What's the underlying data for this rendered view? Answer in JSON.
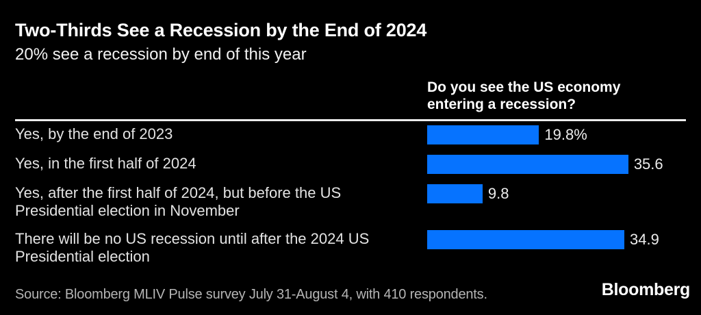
{
  "header": {
    "title": "Two-Thirds See a Recession by the End of 2024",
    "subtitle": "20% see a recession by end of this year"
  },
  "chart_data": {
    "type": "bar",
    "orientation": "horizontal",
    "question": "Do you see the US economy entering a recession?",
    "categories": [
      "Yes, by the end of 2023",
      "Yes, in the first half of 2024",
      "Yes, after the first half of 2024, but before the US Presidential election in November",
      "There will be no US recession until after the 2024 US Presidential election"
    ],
    "values": [
      19.8,
      35.6,
      9.8,
      34.9
    ],
    "value_labels": [
      "19.8%",
      "35.6",
      "9.8",
      "34.9"
    ],
    "bar_color": "#0673ff",
    "xmax": 45.8,
    "legend_position": "none",
    "grid": false
  },
  "footer": {
    "source": "Source: Bloomberg MLIV Pulse survey July 31-August 4, with 410 respondents.",
    "logo": "Bloomberg"
  }
}
